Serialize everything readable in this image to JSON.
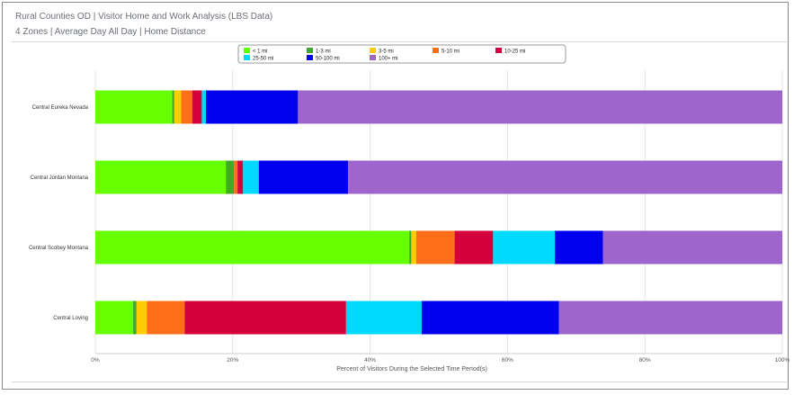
{
  "header": {
    "title": "Rural Counties OD | Visitor Home and Work Analysis (LBS Data)",
    "subtitle": "4 Zones | Average Day All Day | Home Distance"
  },
  "chart_data": {
    "type": "bar",
    "orientation": "horizontal",
    "stacked": true,
    "categories": [
      "Central Eureka Nevada",
      "Central Jordan Montana",
      "Central Scobey Montana",
      "Central Loving"
    ],
    "series": [
      {
        "name": "< 1 mi",
        "color": "#66ff00",
        "values": [
          11.2,
          19.0,
          45.7,
          5.5
        ]
      },
      {
        "name": "1-3 mi",
        "color": "#3fa92a",
        "values": [
          0.3,
          1.2,
          0.3,
          0.5
        ]
      },
      {
        "name": "3-5 mi",
        "color": "#ffcc00",
        "values": [
          1.0,
          0.0,
          0.7,
          1.5
        ]
      },
      {
        "name": "5-10 mi",
        "color": "#ff6f1a",
        "values": [
          1.6,
          0.5,
          5.6,
          5.5
        ]
      },
      {
        "name": "10-25 mi",
        "color": "#d4003c",
        "values": [
          1.4,
          0.8,
          5.6,
          23.5
        ]
      },
      {
        "name": "25-50 mi",
        "color": "#00d9ff",
        "values": [
          0.6,
          2.3,
          9.0,
          11.0
        ]
      },
      {
        "name": "50-100 mi",
        "color": "#0000ee",
        "values": [
          13.4,
          13.0,
          7.0,
          20.0
        ]
      },
      {
        "name": "100+ mi",
        "color": "#9e65cc",
        "values": [
          70.5,
          63.2,
          26.1,
          32.5
        ]
      }
    ],
    "xlabel": "Percent of Visitors During the Selected Time Period(s)",
    "xlim": [
      0,
      100
    ],
    "xticks": [
      "0%",
      "20%",
      "40%",
      "60%",
      "80%",
      "100%"
    ],
    "xtick_values": [
      0,
      20,
      40,
      60,
      80,
      100
    ],
    "grid": true,
    "legend_position": "top-center"
  }
}
